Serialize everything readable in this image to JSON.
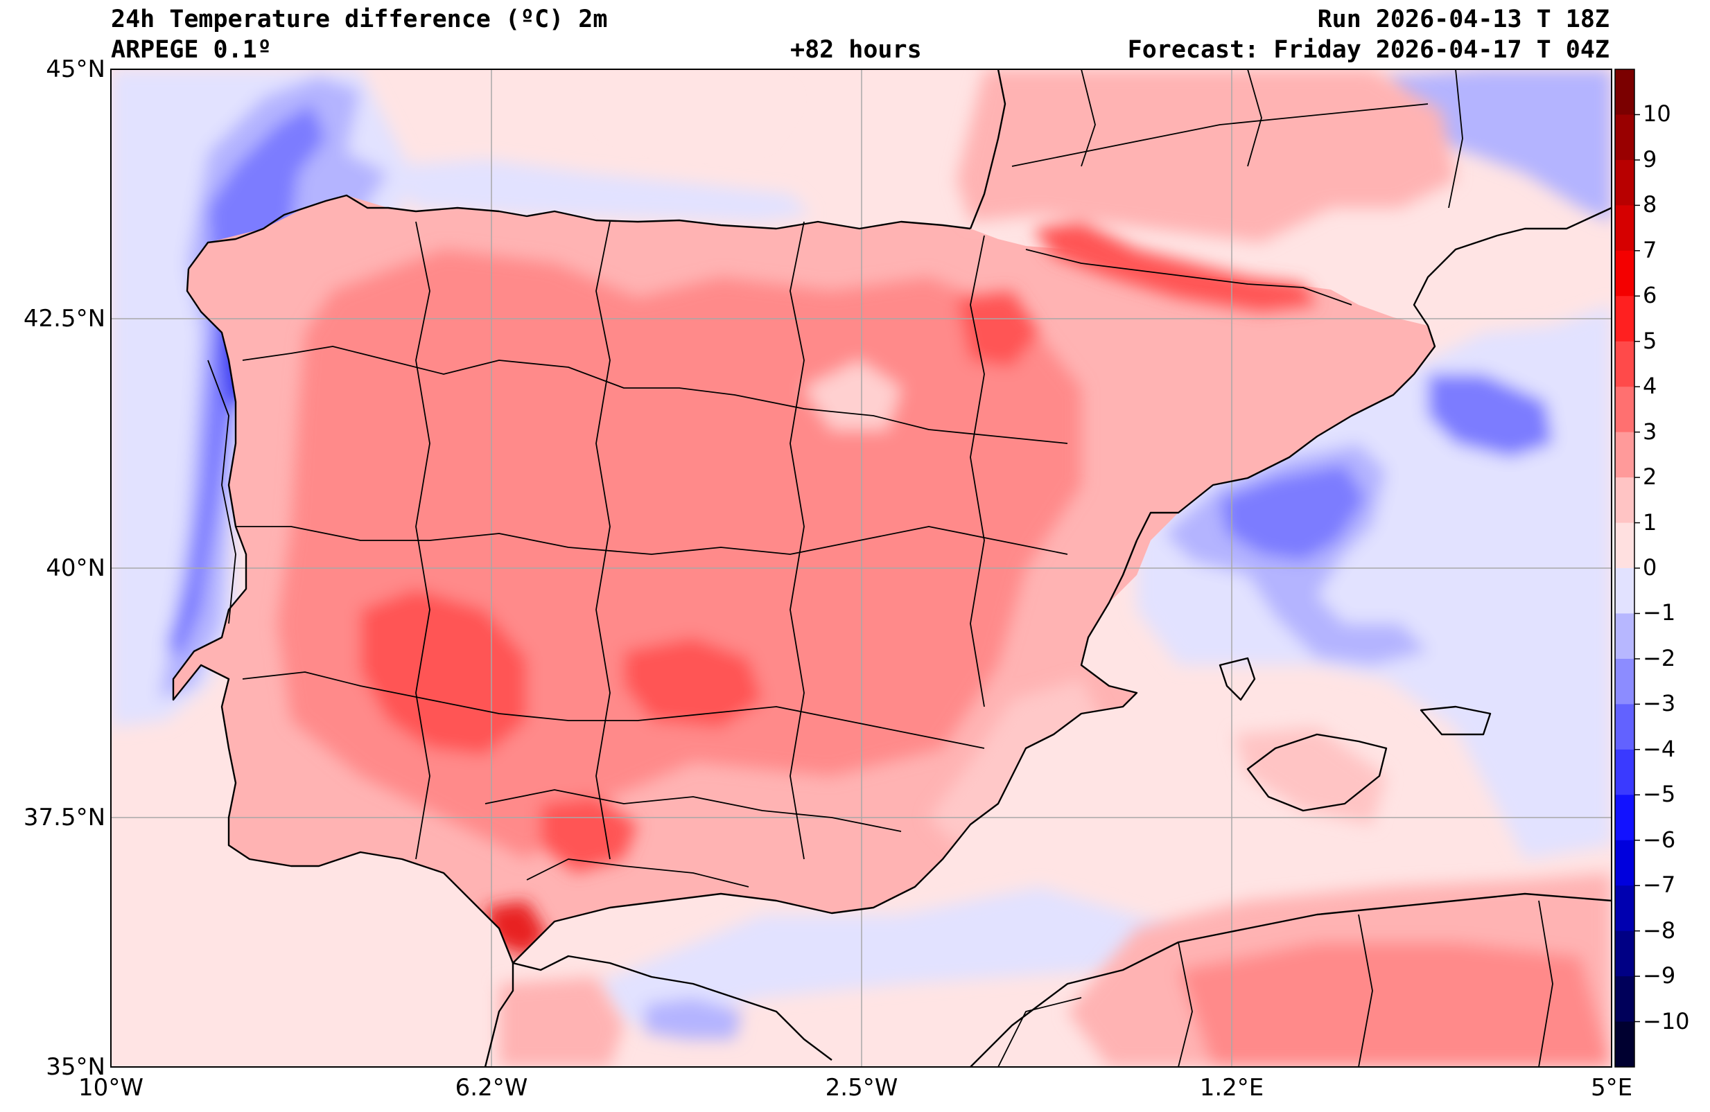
{
  "header": {
    "title": "24h Temperature difference (ºC) 2m",
    "model": "ARPEGE 0.1º",
    "lead_time": "+82 hours",
    "run": "Run 2026-04-13 T 18Z",
    "forecast": "Forecast: Friday 2026-04-17 T 04Z"
  },
  "axes": {
    "lat_labels": [
      "45°N",
      "42.5°N",
      "40°N",
      "37.5°N",
      "35°N"
    ],
    "lon_labels": [
      "10°W",
      "6.2°W",
      "2.5°W",
      "1.2°E",
      "5°E"
    ],
    "lat_values": [
      45,
      42.5,
      40,
      37.5,
      35
    ],
    "lon_values": [
      -10,
      -6.25,
      -2.5,
      1.25,
      5
    ]
  },
  "map_extent": {
    "lon": [
      -10,
      5
    ],
    "lat": [
      35,
      45
    ]
  },
  "colorbar": {
    "ticks": [
      "10",
      "9",
      "8",
      "7",
      "6",
      "5",
      "4",
      "3",
      "2",
      "1",
      "0",
      "−1",
      "−2",
      "−3",
      "−4",
      "−5",
      "−6",
      "−7",
      "−8",
      "−9",
      "−10"
    ],
    "tick_values": [
      10,
      9,
      8,
      7,
      6,
      5,
      4,
      3,
      2,
      1,
      0,
      -1,
      -2,
      -3,
      -4,
      -5,
      -6,
      -7,
      -8,
      -9,
      -10
    ],
    "range": [
      -11,
      11
    ],
    "colors": [
      "#7b0000",
      "#990000",
      "#b80000",
      "#d60000",
      "#f40000",
      "#ff2020",
      "#ff4a4a",
      "#ff7070",
      "#ff9a9a",
      "#ffc4c4",
      "#ffe0e0",
      "#e2e2ff",
      "#b7b7ff",
      "#8c8cff",
      "#6262ff",
      "#3a3aff",
      "#1212ff",
      "#0000dd",
      "#0000b0",
      "#000085",
      "#00005a",
      "#000030"
    ]
  },
  "colors": {
    "background_sea": "#ffe4e4",
    "cool_light": "#e2e2ff",
    "cool_mid": "#b4b4ff",
    "cool_strong": "#7c7cff",
    "cool_deep": "#3a3af0",
    "warm_light": "#ffb3b3",
    "warm_mid": "#ff8a8a",
    "warm_strong": "#ff5454",
    "warm_deep": "#e82020",
    "coastline": "#000000",
    "grid": "#a8a8a8"
  }
}
